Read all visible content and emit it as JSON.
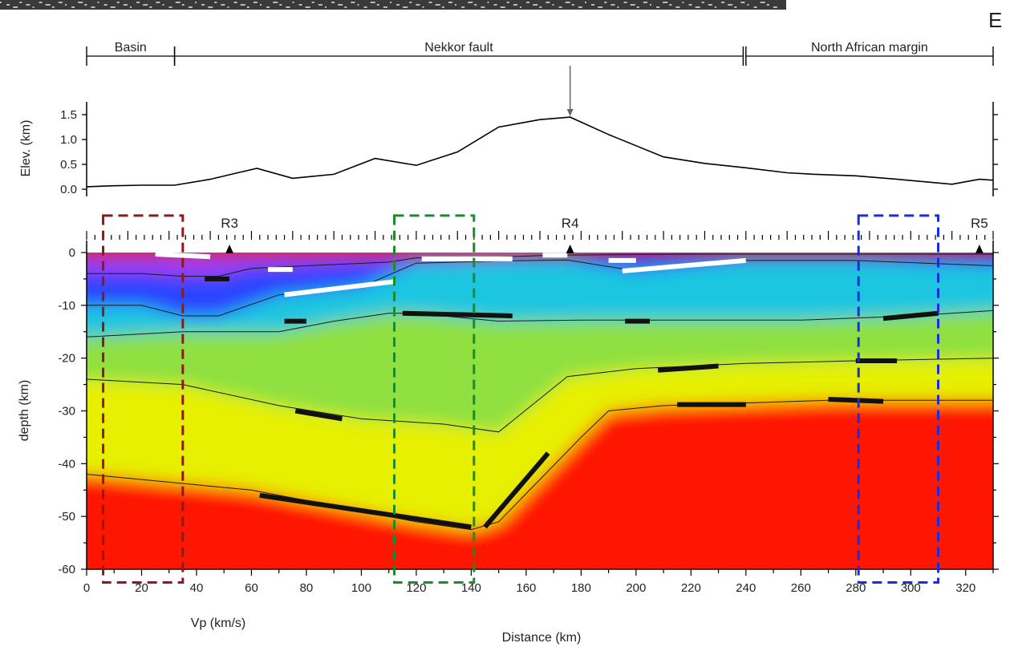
{
  "header_band": {
    "text": ""
  },
  "corner_label": "E",
  "regions": [
    {
      "label": "Basin",
      "x_start": 0,
      "x_end": 32
    },
    {
      "label": "Nekkor fault",
      "x_start": 32,
      "x_end": 239
    },
    {
      "label": "North African margin",
      "x_start": 240,
      "x_end": 330
    }
  ],
  "fault_pointer": {
    "x": 176
  },
  "chart_data": [
    {
      "type": "line",
      "title": "",
      "xlabel": "",
      "ylabel": "Elev. (km)",
      "xlim": [
        0,
        330
      ],
      "ylim": [
        -0.1,
        1.9
      ],
      "yticks": [
        0.0,
        0.5,
        1.0,
        1.5
      ],
      "ytick_labels": [
        "0.0",
        "0.5",
        "1.0",
        "1.5"
      ],
      "series": [
        {
          "x": [
            0,
            10,
            20,
            32,
            45,
            55,
            62,
            75,
            90,
            105,
            120,
            135,
            150,
            165,
            176,
            190,
            210,
            225,
            240,
            255,
            265,
            280,
            295,
            315,
            325,
            330
          ],
          "y": [
            0.05,
            0.07,
            0.08,
            0.08,
            0.2,
            0.33,
            0.42,
            0.22,
            0.3,
            0.62,
            0.48,
            0.75,
            1.25,
            1.4,
            1.45,
            1.1,
            0.65,
            0.52,
            0.43,
            0.33,
            0.3,
            0.27,
            0.2,
            0.1,
            0.2,
            0.18
          ]
        }
      ]
    },
    {
      "type": "heatmap",
      "title": "",
      "xlabel": "Distance (km)",
      "ylabel": "depth (km)",
      "colorbar_label": "Vp (km/s)",
      "xlim": [
        0,
        330
      ],
      "ylim": [
        -60,
        0
      ],
      "xticks": [
        0,
        20,
        40,
        60,
        80,
        100,
        120,
        140,
        160,
        180,
        200,
        220,
        240,
        260,
        280,
        300,
        320
      ],
      "xtick_labels": [
        "0",
        "20",
        "40",
        "60",
        "80",
        "100",
        "120",
        "140",
        "160",
        "180",
        "200",
        "220",
        "240",
        "260",
        "280",
        "300",
        "320"
      ],
      "yticks": [
        0,
        -10,
        -20,
        -30,
        -40,
        -50,
        -60
      ],
      "ytick_labels": [
        "0",
        "-10",
        "-20",
        "-30",
        "-40",
        "-50",
        "-60"
      ],
      "stations": [
        {
          "label": "R3",
          "x": 52
        },
        {
          "label": "R4",
          "x": 176
        },
        {
          "label": "R5",
          "x": 325
        }
      ],
      "layers": [
        {
          "color": "#a23cf0",
          "top_x": [
            0,
            330
          ],
          "top_y": [
            0,
            0
          ]
        },
        {
          "color": "#2a45ff",
          "top_x": [
            0,
            20,
            35,
            48,
            60,
            80,
            110,
            120,
            140,
            170,
            195,
            220,
            330
          ],
          "top_y": [
            -4,
            -4,
            -4.5,
            -4.5,
            -3,
            -2.5,
            -1.8,
            -1,
            -1,
            -0.5,
            -0.4,
            -0.3,
            -0.3
          ]
        },
        {
          "color": "#1fc6e0",
          "top_x": [
            0,
            20,
            35,
            48,
            70,
            100,
            120,
            150,
            175,
            200,
            240,
            280,
            330
          ],
          "top_y": [
            -10,
            -10,
            -12,
            -12,
            -8,
            -6.5,
            -2,
            -1.6,
            -1.4,
            -3.5,
            -1.5,
            -1.5,
            -2.5
          ]
        },
        {
          "color": "#8fe040",
          "top_x": [
            0,
            35,
            70,
            90,
            110,
            120,
            150,
            180,
            220,
            260,
            300,
            330
          ],
          "top_y": [
            -16,
            -15,
            -15,
            -13,
            -11.5,
            -11.5,
            -13,
            -12.8,
            -12.8,
            -12.8,
            -12,
            -11
          ]
        },
        {
          "color": "#e6f000",
          "top_x": [
            0,
            35,
            70,
            100,
            130,
            150,
            175,
            200,
            240,
            280,
            330
          ],
          "top_y": [
            -24,
            -25,
            -29,
            -31.5,
            -32.5,
            -34,
            -23.5,
            -22,
            -21,
            -20.5,
            -20
          ]
        },
        {
          "color": "#ff1800",
          "top_x": [
            0,
            30,
            60,
            90,
            120,
            140,
            150,
            165,
            180,
            190,
            210,
            240,
            270,
            290,
            330
          ],
          "top_y": [
            -42,
            -43.5,
            -45,
            -48,
            -51,
            -52.5,
            -51,
            -43,
            -35,
            -30,
            -29,
            -28.5,
            -28,
            -28,
            -28
          ]
        }
      ],
      "reflectors_black": [
        {
          "x": [
            43,
            52
          ],
          "y": [
            -5,
            -5
          ]
        },
        {
          "x": [
            72,
            80
          ],
          "y": [
            -13,
            -13
          ]
        },
        {
          "x": [
            115,
            155
          ],
          "y": [
            -11.5,
            -12
          ]
        },
        {
          "x": [
            196,
            205
          ],
          "y": [
            -13,
            -13
          ]
        },
        {
          "x": [
            290,
            310
          ],
          "y": [
            -12.5,
            -11.5
          ]
        },
        {
          "x": [
            208,
            230
          ],
          "y": [
            -22.3,
            -21.5
          ]
        },
        {
          "x": [
            215,
            240
          ],
          "y": [
            -28.8,
            -28.8
          ]
        },
        {
          "x": [
            270,
            290
          ],
          "y": [
            -27.8,
            -28.2
          ]
        },
        {
          "x": [
            280,
            295
          ],
          "y": [
            -20.5,
            -20.5
          ]
        },
        {
          "x": [
            76,
            93
          ],
          "y": [
            -30,
            -31.5
          ]
        },
        {
          "x": [
            63,
            140
          ],
          "y": [
            -46,
            -52
          ]
        },
        {
          "x": [
            145,
            168
          ],
          "y": [
            -52,
            -38
          ]
        }
      ],
      "reflectors_white": [
        {
          "x": [
            25,
            45
          ],
          "y": [
            -0.3,
            -0.8
          ]
        },
        {
          "x": [
            66,
            75
          ],
          "y": [
            -3.2,
            -3.2
          ]
        },
        {
          "x": [
            72,
            112
          ],
          "y": [
            -8,
            -5.5
          ]
        },
        {
          "x": [
            122,
            155
          ],
          "y": [
            -1.2,
            -1.2
          ]
        },
        {
          "x": [
            166,
            175
          ],
          "y": [
            -0.5,
            -0.5
          ]
        },
        {
          "x": [
            190,
            200
          ],
          "y": [
            -1.5,
            -1.5
          ]
        },
        {
          "x": [
            195,
            240
          ],
          "y": [
            -3.5,
            -1.5
          ]
        }
      ],
      "highlight_boxes": [
        {
          "color": "#8b1a1a",
          "x0": 6,
          "x1": 35,
          "y0": 7,
          "y1": -62.5
        },
        {
          "color": "#1a8c2a",
          "x0": 112,
          "x1": 141,
          "y0": 7,
          "y1": -62.5
        },
        {
          "color": "#1a2ce0",
          "x0": 281,
          "x1": 310,
          "y0": 7,
          "y1": -62.5
        }
      ]
    }
  ]
}
